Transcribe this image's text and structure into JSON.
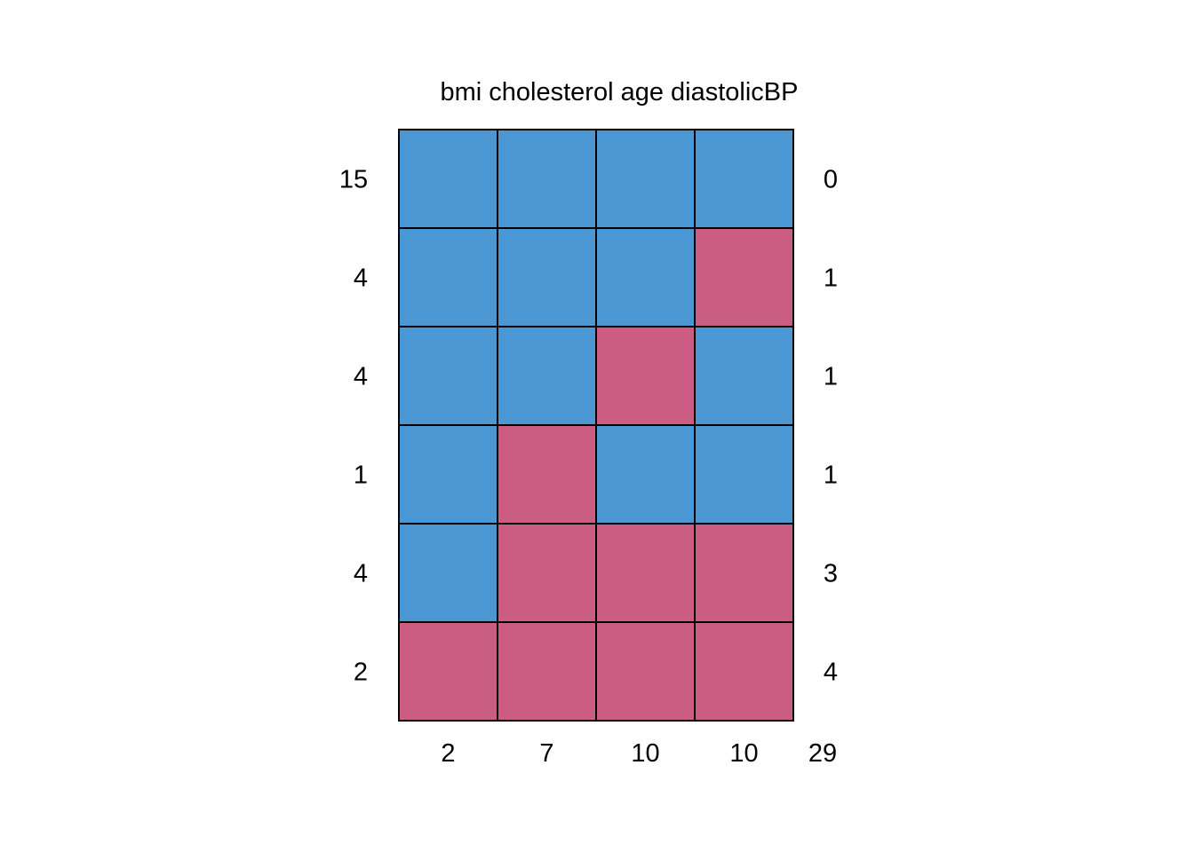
{
  "chart_data": {
    "type": "heatmap",
    "title": "",
    "columns": [
      "bmi",
      "cholesterol",
      "age",
      "diastolicBP"
    ],
    "rows": [
      {
        "count": 15,
        "missing_count": 0,
        "pattern": [
          1,
          1,
          1,
          1
        ]
      },
      {
        "count": 4,
        "missing_count": 1,
        "pattern": [
          1,
          1,
          1,
          0
        ]
      },
      {
        "count": 4,
        "missing_count": 1,
        "pattern": [
          1,
          1,
          0,
          1
        ]
      },
      {
        "count": 1,
        "missing_count": 1,
        "pattern": [
          1,
          0,
          1,
          1
        ]
      },
      {
        "count": 4,
        "missing_count": 3,
        "pattern": [
          1,
          0,
          0,
          0
        ]
      },
      {
        "count": 2,
        "missing_count": 4,
        "pattern": [
          0,
          0,
          0,
          0
        ]
      }
    ],
    "column_missing_totals": [
      2,
      7,
      10,
      10
    ],
    "total_missing": 29,
    "colors": {
      "observed": "#4B97D4",
      "missing": "#CB5D82",
      "grid": "#000000"
    }
  }
}
